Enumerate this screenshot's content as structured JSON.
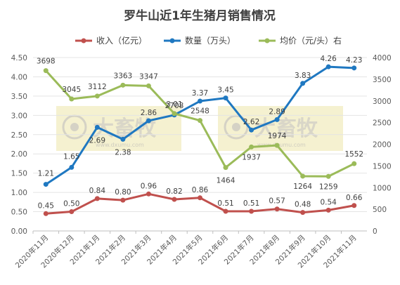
{
  "chart_data": {
    "type": "line",
    "title": "罗牛山近1年生猪月销售情况",
    "categories": [
      "2020年11月",
      "2020年12月",
      "2021年1月",
      "2021年2月",
      "2021年3月",
      "2021年4月",
      "2021年5月",
      "2021年6月",
      "2021年7月",
      "2021年8月",
      "2021年9月",
      "2021年10月",
      "2021年11月"
    ],
    "series": [
      {
        "name": "收入（亿元）",
        "axis": "left",
        "color": "#c0504d",
        "values": [
          0.45,
          0.5,
          0.84,
          0.8,
          0.96,
          0.82,
          0.86,
          0.51,
          0.51,
          0.57,
          0.48,
          0.54,
          0.66
        ],
        "labels": [
          "0.45",
          "0.50",
          "0.84",
          "0.80",
          "0.96",
          "0.82",
          "0.86",
          "0.51",
          "0.51",
          "0.57",
          "0.48",
          "0.54",
          "0.66"
        ]
      },
      {
        "name": "数量（万头）",
        "axis": "left",
        "color": "#1f78c1",
        "values": [
          1.21,
          1.65,
          2.69,
          2.38,
          2.86,
          3.01,
          3.37,
          3.45,
          2.62,
          2.89,
          3.83,
          4.26,
          4.23
        ],
        "labels": [
          "1.21",
          "1.65",
          "2.69",
          "2.38",
          "2.86",
          "3.01",
          "3.37",
          "3.45",
          "2.62",
          "2.89",
          "3.83",
          "4.26",
          "4.23"
        ]
      },
      {
        "name": "均价（元/头）右",
        "axis": "right",
        "color": "#9bbb59",
        "values": [
          3698,
          3045,
          3112,
          3363,
          3347,
          2708,
          2548,
          1464,
          1937,
          1974,
          1264,
          1259,
          1552
        ],
        "labels": [
          "3698",
          "3045",
          "3112",
          "3363",
          "3347",
          "2708",
          "2548",
          "1464",
          "1937",
          "1974",
          "1264",
          "1259",
          "1552"
        ]
      }
    ],
    "y_left": {
      "min": 0,
      "max": 4.5,
      "ticks": [
        "0.00",
        "0.50",
        "1.00",
        "1.50",
        "2.00",
        "2.50",
        "3.00",
        "3.50",
        "4.00",
        "4.50"
      ]
    },
    "y_right": {
      "min": 0,
      "max": 4000,
      "ticks": [
        "0",
        "500",
        "1000",
        "1500",
        "2000",
        "2500",
        "3000",
        "3500",
        "4000"
      ]
    },
    "grid": true,
    "legend_position": "top",
    "watermark": {
      "text": "大畜牧",
      "url": "www.dxumu.com"
    }
  }
}
